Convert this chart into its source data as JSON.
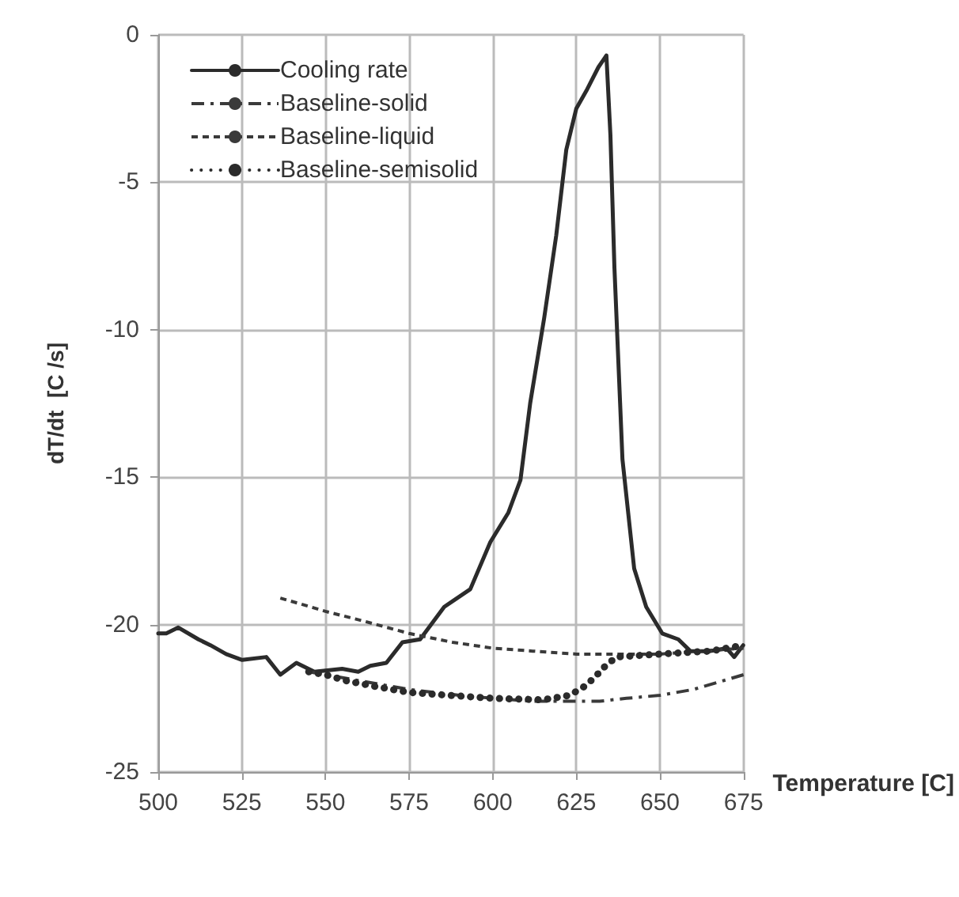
{
  "chart_data": {
    "type": "line",
    "xlabel": "Temperature [C]",
    "ylabel": "dT/dt  [C /s]",
    "xlim": [
      500,
      675
    ],
    "xticks": [
      500,
      525,
      550,
      575,
      600,
      625,
      650,
      675
    ],
    "ylim": [
      -25,
      0
    ],
    "yticks": [
      -25,
      -20,
      -15,
      -10,
      -5,
      0
    ],
    "grid": true,
    "legend": "top left",
    "marker": "none",
    "series": [
      {
        "name": "Cooling rate",
        "color": "#2b2b2b",
        "line_style": "solid",
        "x": [
          500,
          502.4,
          506,
          512,
          515.6,
          520.3,
          525.1,
          532.3,
          536.5,
          541.3,
          546.7,
          555,
          559.8,
          563.4,
          568.2,
          573,
          578.3,
          585.5,
          593.3,
          599.3,
          604.7,
          608.3,
          611.2,
          615.4,
          619,
          622,
          625,
          628,
          631.6,
          634,
          635.2,
          636.4,
          638.8,
          642.3,
          645.9,
          650.7,
          655.5,
          659.1,
          665,
          669.9,
          672.2,
          674.9
        ],
        "values": [
          -20.3,
          -20.3,
          -20.1,
          -20.5,
          -20.7,
          -21.0,
          -21.2,
          -21.1,
          -21.7,
          -21.3,
          -21.6,
          -21.5,
          -21.6,
          -21.4,
          -21.3,
          -20.6,
          -20.5,
          -19.4,
          -18.8,
          -17.2,
          -16.2,
          -15.1,
          -12.5,
          -9.6,
          -6.8,
          -3.9,
          -2.5,
          -1.9,
          -1.1,
          -0.7,
          -3.4,
          -7.9,
          -14.4,
          -18.1,
          -19.4,
          -20.3,
          -20.5,
          -20.9,
          -20.9,
          -20.8,
          -21.1,
          -20.7
        ]
      },
      {
        "name": "Baseline-solid",
        "color": "#3a3a3a",
        "line_style": "dashdot",
        "x": [
          545,
          560,
          575,
          590,
          600,
          612,
          624,
          632,
          640,
          650,
          660,
          675
        ],
        "values": [
          -21.6,
          -21.9,
          -22.2,
          -22.4,
          -22.5,
          -22.6,
          -22.6,
          -22.6,
          -22.5,
          -22.4,
          -22.2,
          -21.7
        ]
      },
      {
        "name": "Baseline-liquid",
        "color": "#3a3a3a",
        "line_style": "dashed",
        "x": [
          536.5,
          550,
          562,
          575,
          588,
          600,
          612,
          625,
          638,
          650,
          662,
          675
        ],
        "values": [
          -19.1,
          -19.55,
          -19.9,
          -20.3,
          -20.6,
          -20.8,
          -20.9,
          -21.0,
          -21.0,
          -21.0,
          -20.9,
          -20.8
        ]
      },
      {
        "name": "Baseline-semisolid",
        "color": "#2b2b2b",
        "line_style": "dotted",
        "x": [
          545,
          550,
          556,
          565,
          575,
          587,
          600,
          615,
          623,
          627.4,
          630.4,
          633.7,
          637,
          650,
          665,
          675
        ],
        "values": [
          -21.6,
          -21.7,
          -21.9,
          -22.1,
          -22.3,
          -22.4,
          -22.5,
          -22.55,
          -22.4,
          -22.1,
          -21.8,
          -21.4,
          -21.1,
          -21.0,
          -20.9,
          -20.7
        ]
      }
    ]
  }
}
